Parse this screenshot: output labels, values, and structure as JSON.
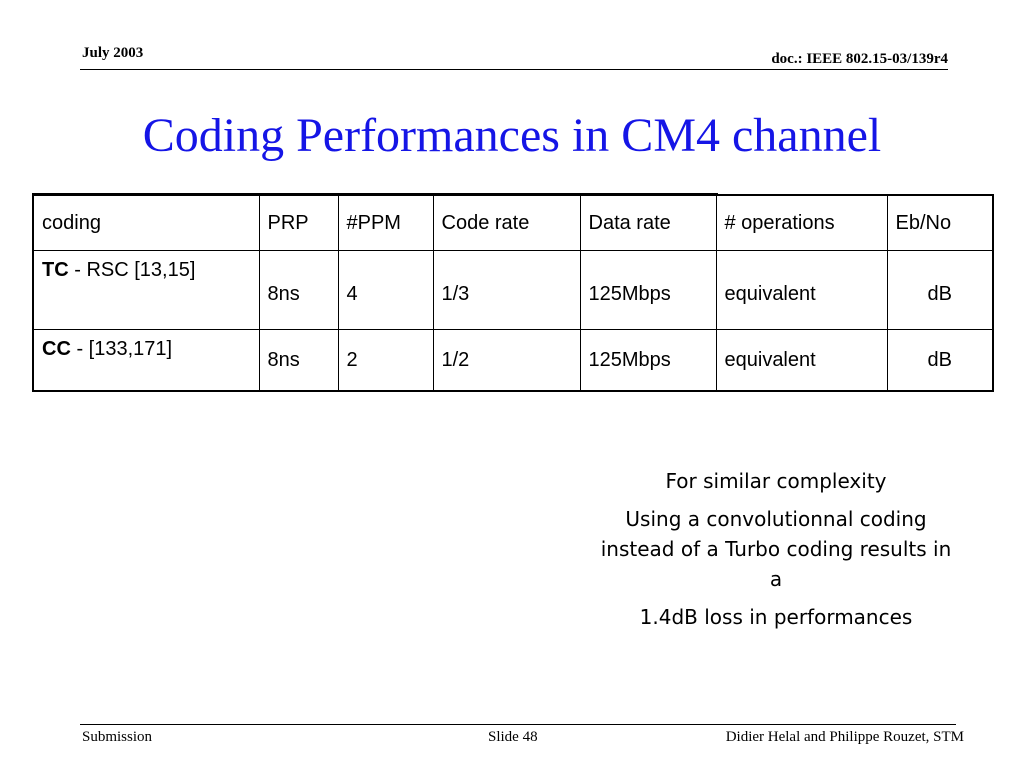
{
  "header": {
    "date": "July 2003",
    "doc_id": "doc.: IEEE 802.15-03/139r4"
  },
  "title": "Coding Performances in CM4 channel",
  "table": {
    "headers": [
      "coding",
      "PRP",
      "#PPM",
      "Code rate",
      "Data rate",
      "# operations",
      "Eb/No"
    ],
    "rows": [
      {
        "name_bold": "TC",
        "name_rest": " - RSC [13,15]",
        "prp": "8ns",
        "ppm": "4",
        "code_rate": "1/3",
        "data_rate": "125Mbps",
        "operations": "equivalent",
        "ebno": "dB"
      },
      {
        "name_bold": "CC",
        "name_rest": " - [133,171]",
        "prp": "8ns",
        "ppm": "2",
        "code_rate": "1/2",
        "data_rate": "125Mbps",
        "operations": "equivalent",
        "ebno": "dB"
      }
    ]
  },
  "conclusion": {
    "line1": "For similar complexity",
    "line2": "Using a convolutionnal coding instead of a Turbo coding results in a",
    "line3": "1.4dB loss in performances"
  },
  "footer": {
    "left": "Submission",
    "center": "Slide 48",
    "right": "Didier Helal and Philippe Rouzet, STM"
  }
}
